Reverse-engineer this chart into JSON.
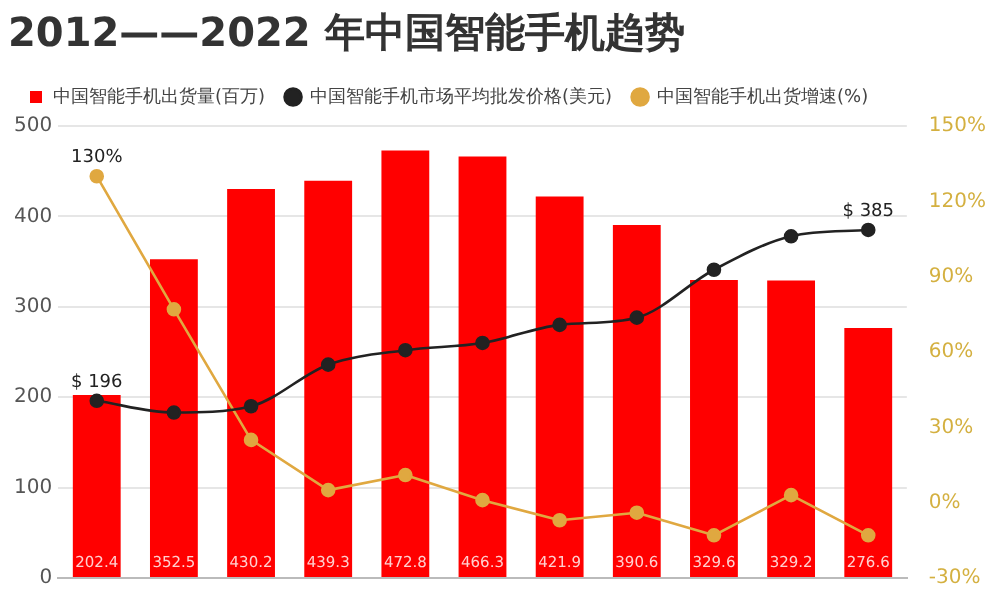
{
  "chart_data": {
    "type": "bar",
    "title": "2012——2022 年中国智能手机趋势",
    "categories": [
      null,
      null,
      null,
      null,
      null,
      null,
      null,
      null,
      null,
      null,
      null
    ],
    "series": [
      {
        "name": "中国智能手机出货量(百万)",
        "color": "#ff0000",
        "values": [
          202.4,
          352.5,
          430.2,
          439.3,
          472.8,
          466.3,
          421.9,
          390.6,
          329.6,
          329.2,
          276.6
        ],
        "value_labels": [
          "202.4",
          "352.5",
          "430.2",
          "439.3",
          "472.8",
          "466.3",
          "421.9",
          "390.6",
          "329.6",
          "329.2",
          "276.6"
        ]
      },
      {
        "name": "中国智能手机市场平均批发价格(美元)",
        "type": "line",
        "color": "#222222",
        "values": [
          196,
          183,
          190,
          236,
          252,
          260,
          280,
          288,
          341,
          378,
          385
        ],
        "value_labels": [
          "$ 196",
          null,
          null,
          null,
          null,
          null,
          null,
          null,
          null,
          null,
          "$ 385"
        ]
      },
      {
        "name": "中国智能手机出货增速(%)",
        "type": "line",
        "axis": "y2",
        "color": "#e0a840",
        "values": [
          130,
          77,
          25,
          5,
          11,
          1,
          -7,
          -4,
          -13,
          3,
          -13
        ],
        "value_labels": [
          "130%",
          null,
          null,
          null,
          null,
          null,
          null,
          null,
          null,
          null,
          null
        ]
      }
    ],
    "ylim": [
      0,
      500
    ],
    "yticks": [
      0,
      100,
      200,
      300,
      400,
      500
    ],
    "y2lim": [
      -30,
      150
    ],
    "y2ticks": [
      {
        "value": -30,
        "label": "-30%"
      },
      {
        "value": 0,
        "label": "0%"
      },
      {
        "value": 30,
        "label": "30%"
      },
      {
        "value": 60,
        "label": "60%"
      },
      {
        "value": 90,
        "label": "90%"
      },
      {
        "value": 120,
        "label": "120%"
      },
      {
        "value": 150,
        "label": "150%"
      }
    ],
    "grid": "y",
    "legend": "top left",
    "marker": "circle",
    "tick_labels": "y"
  }
}
